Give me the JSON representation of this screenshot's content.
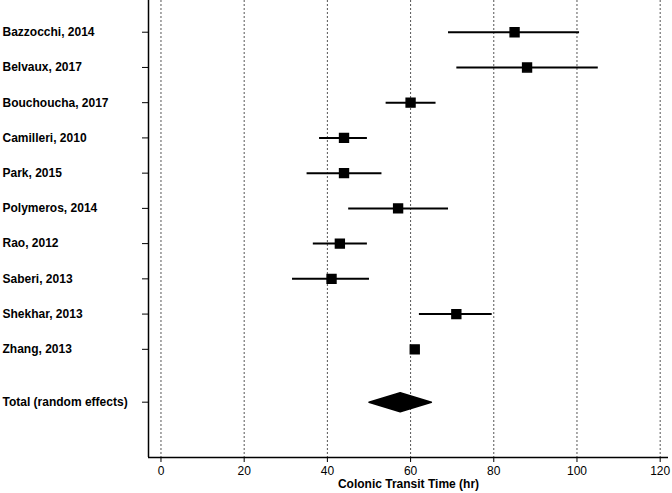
{
  "chart_data": {
    "type": "forest",
    "x_label": "Colonic Transit Time (hr)",
    "categories": [
      "Bazzocchi, 2014",
      "Belvaux, 2017",
      "Bouchoucha, 2017",
      "Camilleri, 2010",
      "Park, 2015",
      "Polymeros, 2014",
      "Rao, 2012",
      "Saberi, 2013",
      "Shekhar, 2013",
      "Zhang, 2013"
    ],
    "values": [
      85,
      88,
      60,
      44,
      44,
      57,
      43,
      41,
      71,
      61
    ],
    "lower": [
      69,
      71,
      54,
      38,
      35,
      45,
      36.5,
      31.5,
      62,
      60
    ],
    "upper": [
      100.5,
      105,
      66,
      49.5,
      53,
      69,
      49.5,
      50,
      79.5,
      62
    ],
    "summary": {
      "label": "Total (random effects)",
      "value": 57.5,
      "lower": 50,
      "upper": 65
    },
    "xlim": [
      -3,
      122
    ],
    "xticks": [
      0,
      20,
      40,
      60,
      80,
      100,
      120
    ],
    "grid": true,
    "color": "#000000",
    "marker": "square"
  }
}
